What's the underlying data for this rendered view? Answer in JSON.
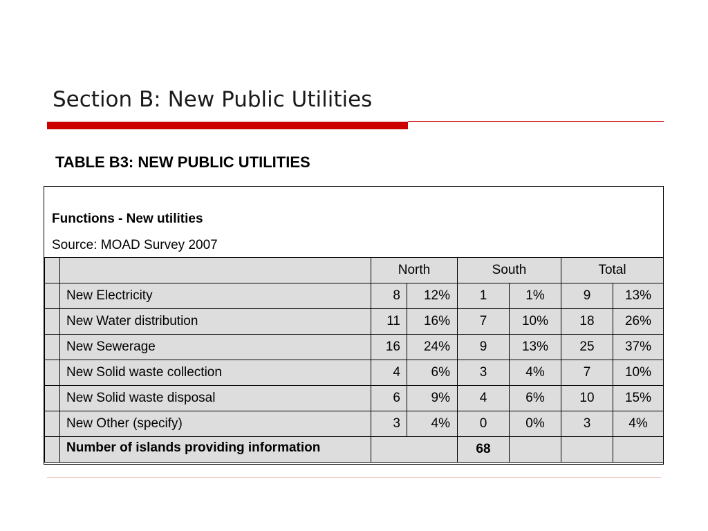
{
  "slide": {
    "title": "Section B: New Public Utilities",
    "accent_color": "#cc0000"
  },
  "table": {
    "caption": "TABLE B3: NEW PUBLIC UTILITIES",
    "functions_label": "Functions - New utilities",
    "source": "Source:  MOAD Survey 2007",
    "headers": [
      "North",
      "South",
      "Total"
    ],
    "rows": [
      {
        "label": "New Electricity",
        "north_n": "8",
        "north_p": "12%",
        "south_n": "1",
        "south_p": "1%",
        "total_n": "9",
        "total_p": "13%"
      },
      {
        "label": "New Water distribution",
        "north_n": "11",
        "north_p": "16%",
        "south_n": "7",
        "south_p": "10%",
        "total_n": "18",
        "total_p": "26%"
      },
      {
        "label": "New Sewerage",
        "north_n": "16",
        "north_p": "24%",
        "south_n": "9",
        "south_p": "13%",
        "total_n": "25",
        "total_p": "37%"
      },
      {
        "label": "New Solid waste collection",
        "north_n": "4",
        "north_p": "6%",
        "south_n": "3",
        "south_p": "4%",
        "total_n": "7",
        "total_p": "10%"
      },
      {
        "label": "New Solid waste disposal",
        "north_n": "6",
        "north_p": "9%",
        "south_n": "4",
        "south_p": "6%",
        "total_n": "10",
        "total_p": "15%"
      },
      {
        "label": "New Other (specify)",
        "north_n": "3",
        "north_p": "4%",
        "south_n": "0",
        "south_p": "0%",
        "total_n": "3",
        "total_p": "4%"
      }
    ],
    "footer": {
      "label": "Number of islands providing information",
      "value": "68"
    }
  }
}
